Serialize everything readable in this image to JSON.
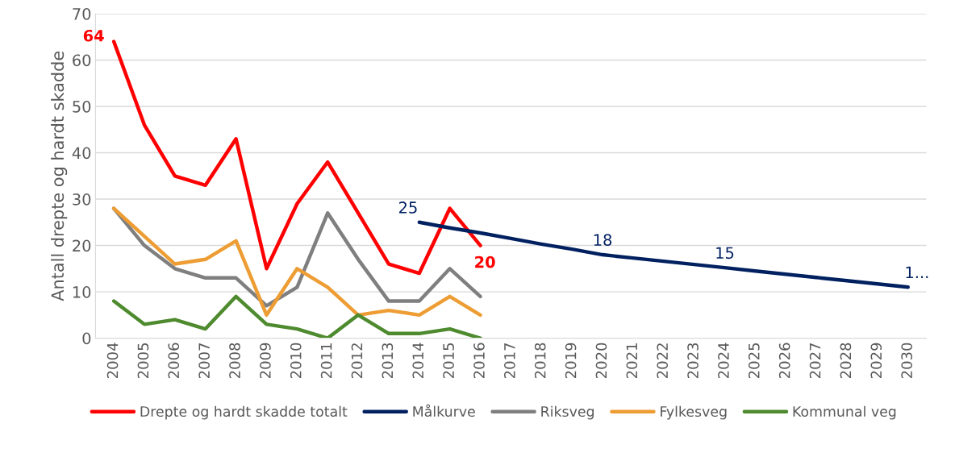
{
  "chart_data": {
    "type": "line",
    "ylabel": "Antall drepte og hardt skadde",
    "categories": [
      "2004",
      "2005",
      "2006",
      "2007",
      "2008",
      "2009",
      "2010",
      "2011",
      "2012",
      "2013",
      "2014",
      "2015",
      "2016",
      "2017",
      "2018",
      "2019",
      "2020",
      "2021",
      "2022",
      "2023",
      "2024",
      "2025",
      "2026",
      "2027",
      "2028",
      "2029",
      "2030"
    ],
    "series": [
      {
        "name": "Drepte og hardt skadde totalt",
        "color": "#ff0000",
        "values": [
          64,
          46,
          35,
          33,
          43,
          15,
          29,
          38,
          27,
          16,
          14,
          28,
          20,
          null,
          null,
          null,
          null,
          null,
          null,
          null,
          null,
          null,
          null,
          null,
          null,
          null,
          null
        ],
        "value_labels": [
          "64",
          null,
          null,
          null,
          null,
          null,
          null,
          null,
          null,
          null,
          null,
          null,
          "20",
          null,
          null,
          null,
          null,
          null,
          null,
          null,
          null,
          null,
          null,
          null,
          null,
          null,
          null
        ]
      },
      {
        "name": "Målkurve",
        "color": "#002060",
        "values": [
          null,
          null,
          null,
          null,
          null,
          null,
          null,
          null,
          null,
          null,
          25,
          23.8,
          22.7,
          21.5,
          20.3,
          19.2,
          18,
          17.3,
          16.6,
          15.9,
          15.2,
          14.5,
          13.8,
          13.1,
          12.4,
          11.7,
          11
        ],
        "value_labels": [
          null,
          null,
          null,
          null,
          null,
          null,
          null,
          null,
          null,
          null,
          "25",
          null,
          null,
          null,
          null,
          null,
          "18",
          null,
          null,
          null,
          "15",
          null,
          null,
          null,
          null,
          null,
          "1..."
        ]
      },
      {
        "name": "Riksveg",
        "color": "#7f7f7f",
        "values": [
          28,
          20,
          15,
          13,
          13,
          7,
          11,
          27,
          17,
          8,
          8,
          15,
          9,
          null,
          null,
          null,
          null,
          null,
          null,
          null,
          null,
          null,
          null,
          null,
          null,
          null,
          null
        ]
      },
      {
        "name": "Fylkesveg",
        "color": "#ed9d33",
        "values": [
          28,
          22,
          16,
          17,
          21,
          5,
          15,
          11,
          5,
          6,
          5,
          9,
          5,
          null,
          null,
          null,
          null,
          null,
          null,
          null,
          null,
          null,
          null,
          null,
          null,
          null,
          null
        ]
      },
      {
        "name": "Kommunal veg",
        "color": "#4e8a2e",
        "values": [
          8,
          3,
          4,
          2,
          9,
          3,
          2,
          0,
          5,
          1,
          1,
          2,
          0,
          null,
          null,
          null,
          null,
          null,
          null,
          null,
          null,
          null,
          null,
          null,
          null,
          null,
          null
        ]
      }
    ],
    "ylim": [
      0,
      70
    ],
    "yticks": [
      0,
      10,
      20,
      30,
      40,
      50,
      60,
      70
    ],
    "grid": "y",
    "legend": "bottom"
  }
}
